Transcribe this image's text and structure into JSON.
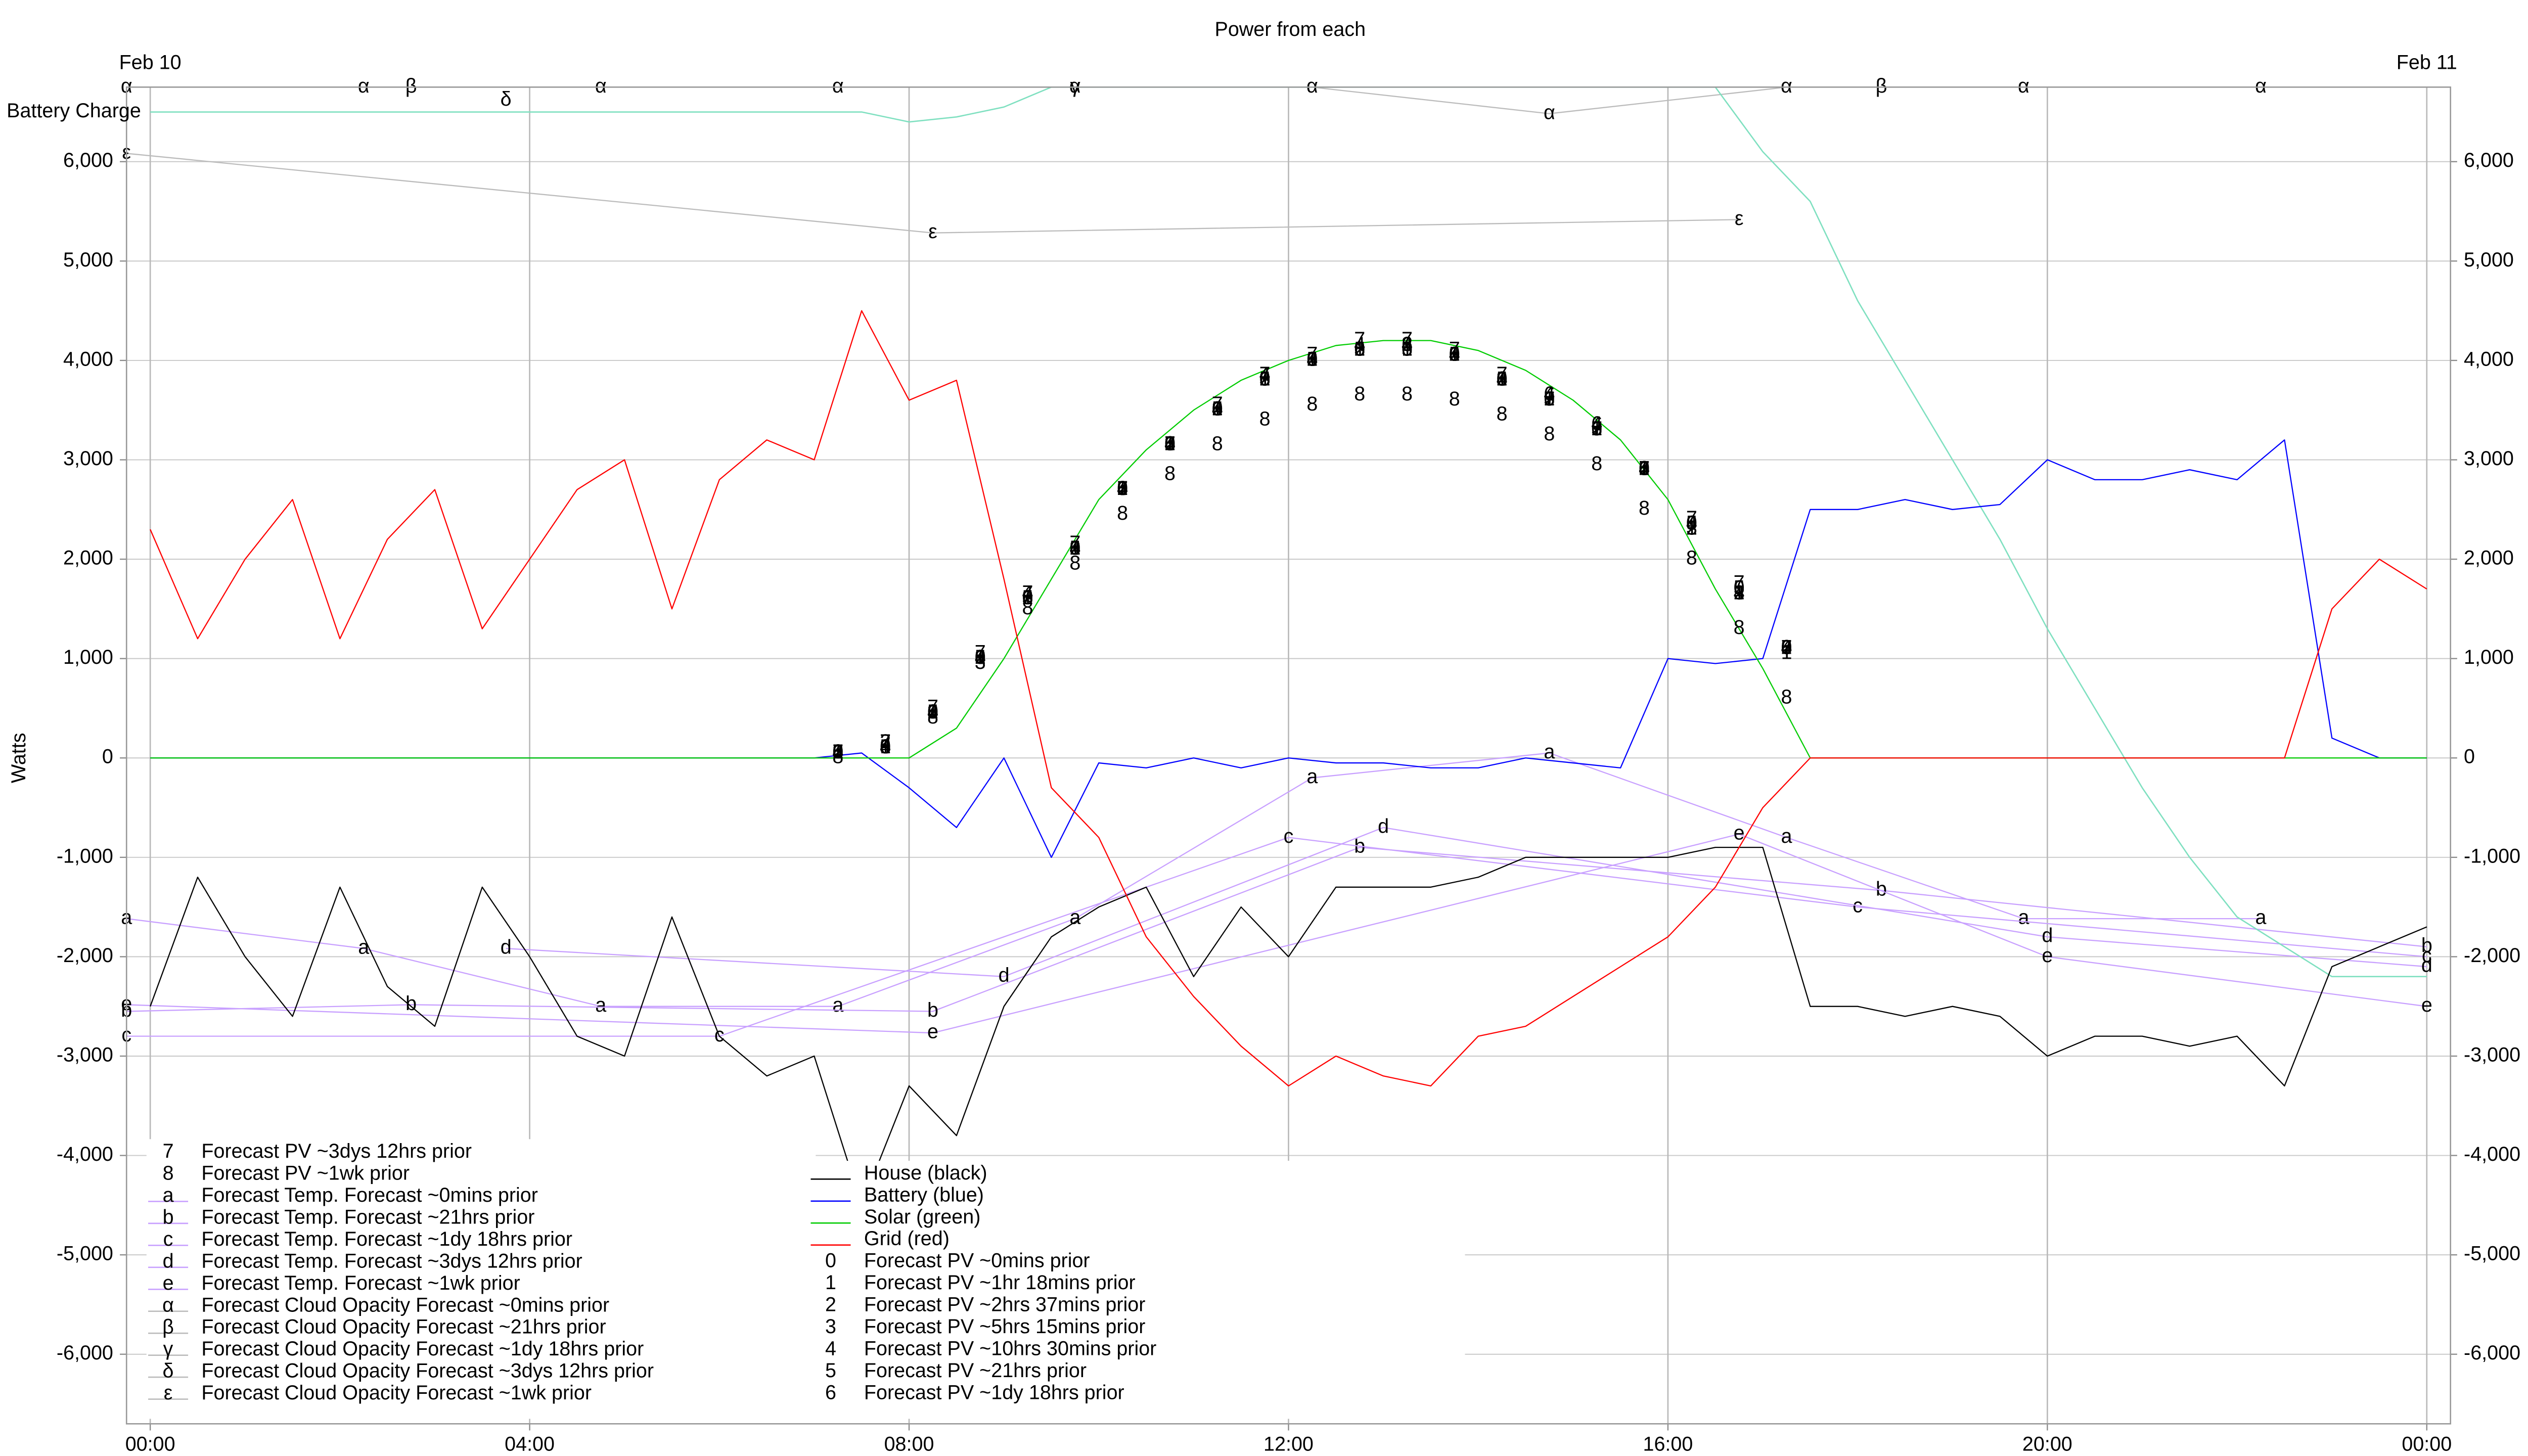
{
  "chart_data": {
    "type": "line",
    "title": "Power from each",
    "ylabel": "Watts",
    "date_labels": [
      {
        "value": 0,
        "label": "Feb 10"
      },
      {
        "value": 24,
        "label": "Feb 11"
      }
    ],
    "xlim": [
      -0.25,
      24.25
    ],
    "xticks": [
      {
        "value": 0,
        "label": "00:00"
      },
      {
        "value": 4,
        "label": "04:00"
      },
      {
        "value": 8,
        "label": "08:00"
      },
      {
        "value": 12,
        "label": "12:00"
      },
      {
        "value": 16,
        "label": "16:00"
      },
      {
        "value": 20,
        "label": "20:00"
      },
      {
        "value": 24,
        "label": "00:00"
      }
    ],
    "ylim": [
      -6700,
      6750
    ],
    "yticks": [
      {
        "value": -6000,
        "label": "-6,000"
      },
      {
        "value": -5000,
        "label": "-5,000"
      },
      {
        "value": -4000,
        "label": "-4,000"
      },
      {
        "value": -3000,
        "label": "-3,000"
      },
      {
        "value": -2000,
        "label": "-2,000"
      },
      {
        "value": -1000,
        "label": "-1,000"
      },
      0,
      {
        "value": 1000,
        "label": "1,000"
      },
      {
        "value": 2000,
        "label": "2,000"
      },
      {
        "value": 3000,
        "label": "3,000"
      },
      {
        "value": 4000,
        "label": "4,000"
      },
      {
        "value": 5000,
        "label": "5,000"
      },
      {
        "value": 6000,
        "label": "6,000"
      }
    ],
    "grid": true,
    "x": [
      0,
      0.5,
      1,
      1.5,
      2,
      2.5,
      3,
      3.5,
      4,
      4.5,
      5,
      5.5,
      6,
      6.5,
      7,
      7.5,
      8,
      8.5,
      9,
      9.5,
      10,
      10.5,
      11,
      11.5,
      12,
      12.5,
      13,
      13.5,
      14,
      14.5,
      15,
      15.5,
      16,
      16.5,
      17,
      17.5,
      18,
      18.5,
      19,
      19.5,
      20,
      20.5,
      21,
      21.5,
      22,
      22.5,
      23,
      23.5,
      24
    ],
    "battery_charge": {
      "name": "Battery Charge",
      "color": "#7fe0c0",
      "values": [
        6500,
        6500,
        6500,
        6500,
        6500,
        6500,
        6500,
        6500,
        6500,
        6500,
        6500,
        6500,
        6500,
        6500,
        6500,
        6500,
        6400,
        6450,
        6550,
        6750,
        6750,
        6750,
        6750,
        6750,
        6750,
        6750,
        6750,
        6750,
        6750,
        6750,
        6750,
        6750,
        6750,
        6750,
        6100,
        5600,
        4600,
        3800,
        3000,
        2200,
        1300,
        500,
        -300,
        -1000,
        -1600,
        -1900,
        -2200,
        -2200,
        -2200
      ]
    },
    "series": [
      {
        "name": "House (black)",
        "color": "#000000",
        "values": [
          -2500,
          -1200,
          -2000,
          -2600,
          -1300,
          -2300,
          -2700,
          -1300,
          -2000,
          -2800,
          -3000,
          -1600,
          -2800,
          -3200,
          -3000,
          -4500,
          -3300,
          -3800,
          -2500,
          -1800,
          -1500,
          -1300,
          -2200,
          -1500,
          -2000,
          -1300,
          -1300,
          -1300,
          -1200,
          -1000,
          -1000,
          -1000,
          -1000,
          -900,
          -900,
          -2500,
          -2500,
          -2600,
          -2500,
          -2600,
          -3000,
          -2800,
          -2800,
          -2900,
          -2800,
          -3300,
          -2100,
          -1900,
          -1700
        ]
      },
      {
        "name": "Battery (blue)",
        "color": "#0000ff",
        "values": [
          0,
          0,
          0,
          0,
          0,
          0,
          0,
          0,
          0,
          0,
          0,
          0,
          0,
          0,
          0,
          50,
          -300,
          -700,
          0,
          -1000,
          -50,
          -100,
          0,
          -100,
          0,
          -50,
          -50,
          -100,
          -100,
          0,
          -50,
          -100,
          1000,
          950,
          1000,
          2500,
          2500,
          2600,
          2500,
          2550,
          3000,
          2800,
          2800,
          2900,
          2800,
          3200,
          200,
          0,
          0
        ]
      },
      {
        "name": "Solar (green)",
        "color": "#00cc00",
        "values": [
          0,
          0,
          0,
          0,
          0,
          0,
          0,
          0,
          0,
          0,
          0,
          0,
          0,
          0,
          0,
          0,
          0,
          300,
          1000,
          1800,
          2600,
          3100,
          3500,
          3800,
          4000,
          4150,
          4200,
          4200,
          4100,
          3900,
          3600,
          3200,
          2600,
          1700,
          900,
          0,
          0,
          0,
          0,
          0,
          0,
          0,
          0,
          0,
          0,
          0,
          0,
          0,
          0
        ]
      },
      {
        "name": "Grid (red)",
        "color": "#ff0000",
        "values": [
          2300,
          1200,
          2000,
          2600,
          1200,
          2200,
          2700,
          1300,
          2000,
          2700,
          3000,
          1500,
          2800,
          3200,
          3000,
          4500,
          3600,
          3800,
          1800,
          -300,
          -800,
          -1800,
          -2400,
          -2900,
          -3300,
          -3000,
          -3200,
          -3300,
          -2800,
          -2700,
          -2400,
          -2100,
          -1800,
          -1300,
          -500,
          0,
          0,
          0,
          0,
          0,
          0,
          0,
          0,
          0,
          0,
          0,
          1500,
          2000,
          1700
        ]
      }
    ],
    "pv_x": [
      7.25,
      7.75,
      8.25,
      8.75,
      9.25,
      9.75,
      10.25,
      10.75,
      11.25,
      11.75,
      12.25,
      12.75,
      13.25,
      13.75,
      14.25,
      14.75,
      15.25,
      15.75,
      16.25,
      16.75,
      17.25
    ],
    "pv_forecasts": [
      {
        "symbol": "0",
        "name": "Forecast PV ~0mins prior",
        "values": [
          50,
          100,
          450,
          1000,
          1600,
          2100,
          2700,
          3150,
          3500,
          3800,
          4000,
          4100,
          4100,
          4050,
          3800,
          3600,
          3300,
          2900,
          2350,
          1700,
          1100
        ]
      },
      {
        "symbol": "1",
        "name": "Forecast PV ~1hr 18mins prior",
        "values": [
          50,
          100,
          450,
          1000,
          1600,
          2100,
          2700,
          3150,
          3500,
          3800,
          4000,
          4100,
          4100,
          4050,
          3800,
          3600,
          3300,
          2900,
          2300,
          1650,
          1050
        ]
      },
      {
        "symbol": "2",
        "name": "Forecast PV ~2hrs 37mins prior",
        "values": [
          50,
          150,
          450,
          1000,
          1600,
          2100,
          2700,
          3150,
          3500,
          3800,
          4000,
          4100,
          4150,
          4050,
          3800,
          3600,
          3300,
          2900,
          2300,
          1650,
          1100
        ]
      },
      {
        "symbol": "3",
        "name": "Forecast PV ~5hrs 15mins prior",
        "values": [
          50,
          100,
          450,
          950,
          1600,
          2100,
          2700,
          3150,
          3500,
          3800,
          4000,
          4100,
          4150,
          4050,
          3800,
          3600,
          3300,
          2900,
          2300,
          1650,
          1100
        ]
      },
      {
        "symbol": "4",
        "name": "Forecast PV ~10hrs 30mins prior",
        "values": [
          50,
          100,
          450,
          1000,
          1650,
          2100,
          2700,
          3150,
          3500,
          3850,
          4000,
          4150,
          4150,
          4050,
          3800,
          3650,
          3350,
          2900,
          2350,
          1650,
          1100
        ]
      },
      {
        "symbol": "5",
        "name": "Forecast PV ~21hrs prior",
        "values": [
          50,
          100,
          450,
          1000,
          1600,
          2100,
          2700,
          3150,
          3500,
          3800,
          4000,
          4100,
          4100,
          4050,
          3800,
          3600,
          3300,
          2900,
          2350,
          1700,
          1100
        ]
      },
      {
        "symbol": "6",
        "name": "Forecast PV ~1dy 18hrs prior",
        "values": [
          50,
          100,
          450,
          1000,
          1600,
          2100,
          2700,
          3150,
          3500,
          3800,
          4000,
          4100,
          4150,
          4050,
          3800,
          3650,
          3350,
          2900,
          2350,
          1700,
          1100
        ]
      },
      {
        "symbol": "7",
        "name": "Forecast PV ~3dys 12hrs prior",
        "values": [
          50,
          150,
          500,
          1050,
          1650,
          2150,
          2700,
          3150,
          3550,
          3850,
          4050,
          4200,
          4200,
          4100,
          3850,
          3600,
          3300,
          2900,
          2400,
          1750,
          1100
        ]
      },
      {
        "symbol": "8",
        "name": "Forecast PV ~1wk prior",
        "values": [
          0,
          100,
          400,
          1000,
          1500,
          1950,
          2450,
          2850,
          3150,
          3400,
          3550,
          3650,
          3650,
          3600,
          3450,
          3250,
          2950,
          2500,
          2000,
          1300,
          600
        ]
      }
    ],
    "temp_forecasts": [
      {
        "symbol": "a",
        "name": "Forecast Temp. Forecast ~0mins prior",
        "color": "#c8a0ff",
        "x": [
          -0.25,
          2.25,
          4.75,
          7.25,
          9.75,
          12.25,
          14.75,
          17.25,
          19.75,
          22.25
        ],
        "values": [
          -1617,
          -1917,
          -2500,
          -2500,
          -1617,
          -200,
          50,
          -800,
          -1617,
          -1617
        ]
      },
      {
        "symbol": "b",
        "name": "Forecast Temp. Forecast ~21hrs prior",
        "color": "#c8a0ff",
        "x": [
          -0.25,
          2.75,
          8.25,
          12.75,
          18.25,
          24
        ],
        "values": [
          -2550,
          -2483,
          -2550,
          -900,
          -1333,
          -1900
        ]
      },
      {
        "symbol": "c",
        "name": "Forecast Temp. Forecast ~1dy 18hrs prior",
        "color": "#c8a0ff",
        "x": [
          -0.25,
          6,
          12,
          18,
          24
        ],
        "values": [
          -2800,
          -2800,
          -800,
          -1500,
          -2000
        ]
      },
      {
        "symbol": "d",
        "name": "Forecast Temp. Forecast ~3dys 12hrs prior",
        "color": "#c8a0ff",
        "x": [
          3.75,
          9,
          13,
          20,
          24
        ],
        "values": [
          -1917,
          -2200,
          -700,
          -1800,
          -2100
        ]
      },
      {
        "symbol": "e",
        "name": "Forecast Temp. Forecast ~1wk prior",
        "color": "#c8a0ff",
        "x": [
          -0.25,
          8.25,
          16.75,
          20,
          24
        ],
        "values": [
          -2483,
          -2767,
          -767,
          -2000,
          -2500
        ]
      }
    ],
    "cloud_forecasts": [
      {
        "symbol": "α",
        "name": "Forecast Cloud Opacity Forecast ~0mins prior",
        "color": "#bbbbbb",
        "x": [
          -0.25,
          2.25,
          4.75,
          7.25,
          9.75,
          12.25,
          14.75,
          17.25,
          19.75,
          22.25
        ],
        "values": [
          6750,
          6750,
          6750,
          6750,
          6750,
          6750,
          6483,
          6750,
          6750,
          6750
        ]
      },
      {
        "symbol": "β",
        "name": "Forecast Cloud Opacity Forecast ~21hrs prior",
        "color": "#bbbbbb",
        "x": [
          2.75,
          18.25
        ],
        "values": [
          6750,
          6750
        ]
      },
      {
        "symbol": "γ",
        "name": "Forecast Cloud Opacity Forecast ~1dy 18hrs prior",
        "color": "#bbbbbb",
        "x": [
          9.75
        ],
        "values": [
          6750
        ]
      },
      {
        "symbol": "δ",
        "name": "Forecast Cloud Opacity Forecast ~3dys 12hrs prior",
        "color": "#bbbbbb",
        "x": [
          3.75
        ],
        "values": [
          6617
        ]
      },
      {
        "symbol": "ε",
        "name": "Forecast Cloud Opacity Forecast ~1wk prior",
        "color": "#bbbbbb",
        "x": [
          -0.25,
          8.25,
          16.75
        ],
        "values": [
          6083,
          5283,
          5417
        ]
      }
    ]
  }
}
